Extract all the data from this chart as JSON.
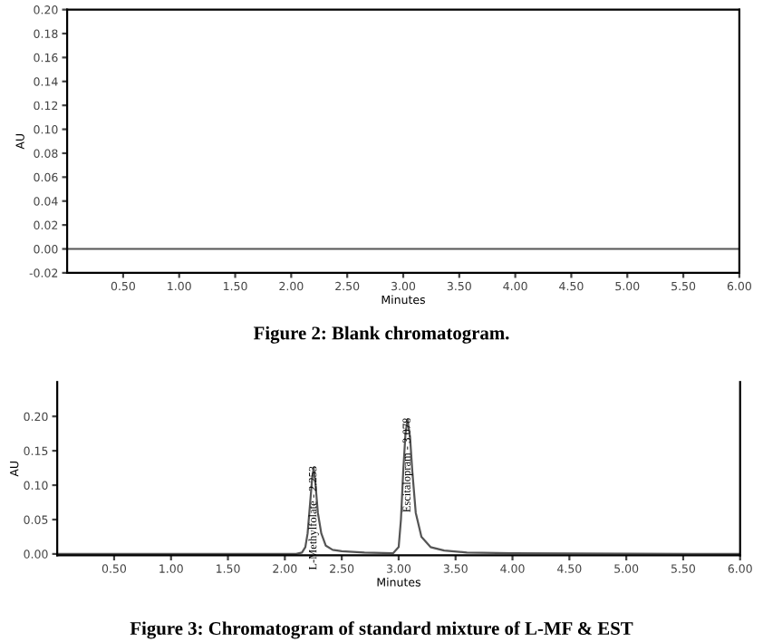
{
  "chart_data": [
    {
      "type": "line",
      "xlabel": "Minutes",
      "ylabel": "AU",
      "annotations": [
        "Figure 2: Blank chromatogram."
      ],
      "series": [
        {
          "color": "#555555",
          "x": [
            0,
            1.0,
            2.0,
            3.0,
            4.0,
            5.0,
            6.0
          ],
          "values": [
            0,
            0,
            0,
            0,
            0,
            0,
            0
          ]
        }
      ],
      "xlim": [
        0,
        6.0
      ],
      "ylim": [
        -0.02,
        0.2
      ],
      "xticks": [
        {
          "value": 0.5,
          "label": "0.50"
        },
        {
          "value": 1.0,
          "label": "1.00"
        },
        {
          "value": 1.5,
          "label": "1.50"
        },
        {
          "value": 2.0,
          "label": "2.00"
        },
        {
          "value": 2.5,
          "label": "2.50"
        },
        {
          "value": 3.0,
          "label": "3.00"
        },
        {
          "value": 3.5,
          "label": "3.50"
        },
        {
          "value": 4.0,
          "label": "4.00"
        },
        {
          "value": 4.5,
          "label": "4.50"
        },
        {
          "value": 5.0,
          "label": "5.00"
        },
        {
          "value": 5.5,
          "label": "5.50"
        },
        {
          "value": 6.0,
          "label": "6.00"
        }
      ],
      "yticks": [
        {
          "value": -0.02,
          "label": "-0.02"
        },
        {
          "value": 0.0,
          "label": "0.00"
        },
        {
          "value": 0.02,
          "label": "0.02"
        },
        {
          "value": 0.04,
          "label": "0.04"
        },
        {
          "value": 0.06,
          "label": "0.06"
        },
        {
          "value": 0.08,
          "label": "0.08"
        },
        {
          "value": 0.1,
          "label": "0.10"
        },
        {
          "value": 0.12,
          "label": "0.12"
        },
        {
          "value": 0.14,
          "label": "0.14"
        },
        {
          "value": 0.16,
          "label": "0.16"
        },
        {
          "value": 0.18,
          "label": "0.18"
        },
        {
          "value": 0.2,
          "label": "0.20"
        }
      ],
      "grid": false,
      "legend": false
    },
    {
      "type": "line",
      "xlabel": "Minutes",
      "ylabel": "AU",
      "annotations": [
        {
          "text": "L-Methylfolate - 2.253",
          "x": 2.253,
          "y": 0.125
        },
        {
          "text": "Escitalopram - 3.078",
          "x": 3.078,
          "y": 0.195
        },
        "Figure 3: Chromatogram of standard mixture of L-MF & EST"
      ],
      "series": [
        {
          "color": "#555555",
          "x": [
            0,
            2.1,
            2.15,
            2.18,
            2.2,
            2.22,
            2.24,
            2.253,
            2.27,
            2.29,
            2.32,
            2.36,
            2.42,
            2.5,
            2.7,
            2.95,
            3.0,
            3.02,
            3.04,
            3.06,
            3.078,
            3.1,
            3.12,
            3.15,
            3.2,
            3.28,
            3.4,
            3.6,
            4.0,
            6.0
          ],
          "values": [
            0,
            0,
            0.002,
            0.01,
            0.03,
            0.07,
            0.11,
            0.125,
            0.1,
            0.06,
            0.03,
            0.012,
            0.006,
            0.004,
            0.002,
            0.001,
            0.01,
            0.05,
            0.12,
            0.175,
            0.195,
            0.17,
            0.12,
            0.06,
            0.025,
            0.01,
            0.005,
            0.002,
            0.001,
            0
          ]
        }
      ],
      "xlim": [
        0,
        6.0
      ],
      "ylim": [
        -0.002,
        0.25
      ],
      "xticks": [
        {
          "value": 0.5,
          "label": "0.50"
        },
        {
          "value": 1.0,
          "label": "1.00"
        },
        {
          "value": 1.5,
          "label": "1.50"
        },
        {
          "value": 2.0,
          "label": "2.00"
        },
        {
          "value": 2.5,
          "label": "2.50"
        },
        {
          "value": 3.0,
          "label": "3.00"
        },
        {
          "value": 3.5,
          "label": "3.50"
        },
        {
          "value": 4.0,
          "label": "4.00"
        },
        {
          "value": 4.5,
          "label": "4.50"
        },
        {
          "value": 5.0,
          "label": "5.00"
        },
        {
          "value": 5.5,
          "label": "5.50"
        },
        {
          "value": 6.0,
          "label": "6.00"
        }
      ],
      "yticks": [
        {
          "value": 0.0,
          "label": "0.00"
        },
        {
          "value": 0.05,
          "label": "0.05"
        },
        {
          "value": 0.1,
          "label": "0.10"
        },
        {
          "value": 0.15,
          "label": "0.15"
        },
        {
          "value": 0.2,
          "label": "0.20"
        }
      ],
      "grid": false,
      "legend": false
    }
  ]
}
